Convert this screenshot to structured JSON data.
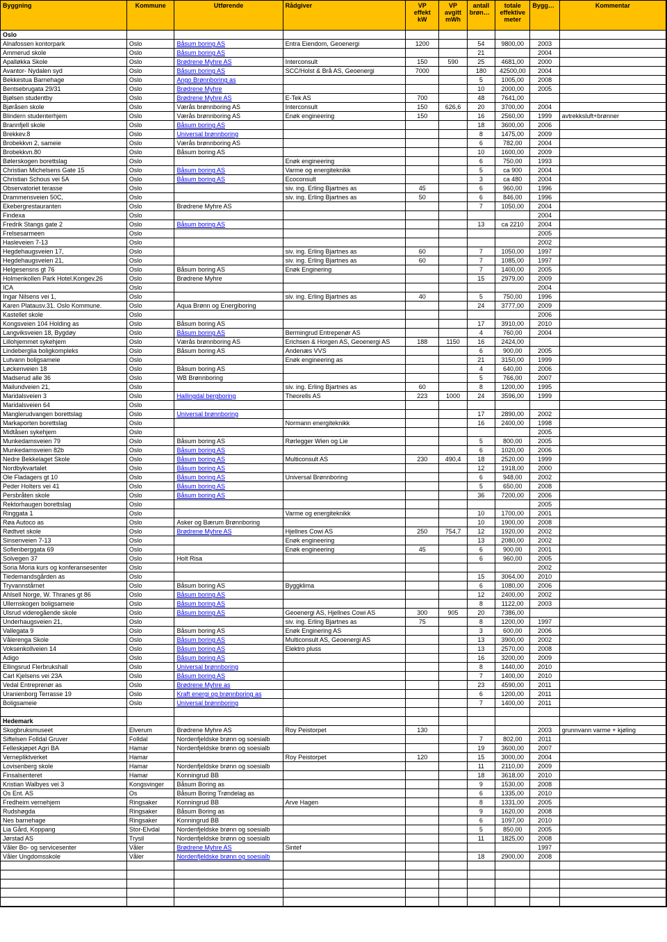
{
  "columns": [
    {
      "label": "Byggning"
    },
    {
      "label": "Kommune"
    },
    {
      "label": "Utførende"
    },
    {
      "label": "Rådgiver"
    },
    {
      "label": "VP effekt kW"
    },
    {
      "label": "VP avgitt mWh"
    },
    {
      "label": "antall brønner"
    },
    {
      "label": "totale effektive meter"
    },
    {
      "label": "Byggeår"
    },
    {
      "label": "Kommentar"
    }
  ],
  "table_style": {
    "header_bg": "#ffc000",
    "border_color": "#000000",
    "link_color": "#0000ee",
    "font_size_pt": 7,
    "font_family": "Arial"
  },
  "rows": [
    {
      "section": "Oslo"
    },
    {
      "b": "Alnafossen kontorpark",
      "k": "Oslo",
      "u": "Båsum boring AS",
      "ul": true,
      "r": "Entra Eiendom, Geoenergi",
      "vp": "1200",
      "vw": "",
      "ab": "54",
      "tm": "9800,00",
      "y": "2003"
    },
    {
      "b": "Ammerud skole",
      "k": "Oslo",
      "u": "Båsum boring AS",
      "ul": true,
      "ab": "21",
      "y": "2004"
    },
    {
      "b": "Apalløkka Skole",
      "k": "Oslo",
      "u": "Brødrene Myhre AS",
      "ul": true,
      "r": "Interconsult",
      "vp": "150",
      "vw": "590",
      "ab": "25",
      "tm": "4681,00",
      "y": "2000"
    },
    {
      "b": "Avantor- Nydalen syd",
      "k": "Oslo",
      "u": "Båsum boring AS",
      "ul": true,
      "r": "SCC/Holst & Brå AS, Geoenergi",
      "vp": "7000",
      "ab": "180",
      "tm": "42500,00",
      "y": "2004"
    },
    {
      "b": "Bekkestua Barnehage",
      "k": "Oslo",
      "u": "Ango Brønnboring as",
      "ul": true,
      "ab": "5",
      "tm": "1005,00",
      "y": "2008"
    },
    {
      "b": "Bentsebrugata 29/31",
      "k": "Oslo",
      "u": "Brødrene Myhre",
      "ul": true,
      "ab": "10",
      "tm": "2000,00",
      "y": "2005"
    },
    {
      "b": "Bjølsen studentby",
      "k": "Oslo",
      "u": "Brødrene Myhre AS",
      "ul": true,
      "r": "E-Tek AS",
      "vp": "700",
      "ab": "48",
      "tm": "7641,00"
    },
    {
      "b": "Bjøråsen  skole",
      "k": "Oslo",
      "u": "Værås brønnboring AS",
      "r": "Interconsult",
      "vp": "150",
      "vw": "626,6",
      "ab": "20",
      "tm": "3700,00",
      "y": "2004"
    },
    {
      "b": "Blindern studenterhjem",
      "k": "Oslo",
      "u": "Værås brønnboring AS",
      "r": "Enøk engineering",
      "vp": "150",
      "ab": "16",
      "tm": "2560,00",
      "y": "1999",
      "c": "avtrekksluft+brønner"
    },
    {
      "b": "Brannfjell skole",
      "k": "Oslo",
      "u": "Båsum boring AS",
      "ul": true,
      "ab": "18",
      "tm": "3600,00",
      "y": "2006"
    },
    {
      "b": "Brekkev.8",
      "k": "Oslo",
      "u": "Universal brønnboring",
      "ul": true,
      "ab": "8",
      "tm": "1475,00",
      "y": "2009"
    },
    {
      "b": "Brobekkvn 2, sameie",
      "k": "Oslo",
      "u": "Værås brønnboring AS",
      "ab": "6",
      "tm": "782,00",
      "y": "2004"
    },
    {
      "b": "Brobekkvn.80",
      "k": "Oslo",
      "u": "Båsum boring AS",
      "ab": "10",
      "tm": "1600,00",
      "y": "2009"
    },
    {
      "b": "Bølerskogen borettslag",
      "k": "Oslo",
      "r": "Enøk engineering",
      "ab": "6",
      "tm": "750,00",
      "y": "1993"
    },
    {
      "b": "Christian Michelsens Gate 15",
      "k": "Oslo",
      "u": "Båsum boring AS",
      "ul": true,
      "r": "Varme og energiteknikk",
      "ab": "5",
      "tm": "ca 900",
      "y": "2004"
    },
    {
      "b": "Christian Schous vei 5A",
      "k": "Oslo",
      "u": "Båsum boring AS",
      "ul": true,
      "r": "Ecoconsult",
      "ab": "3",
      "tm": "ca 480",
      "y": "2004"
    },
    {
      "b": "Observatoriet terasse",
      "k": "Oslo",
      "r": "siv. ing. Erling Bjartnes as",
      "vp": "45",
      "ab": "6",
      "tm": "960,00",
      "y": "1996"
    },
    {
      "b": "Drammensveien 50C,",
      "k": "Oslo",
      "r": "siv. ing. Erling Bjartnes as",
      "vp": "50",
      "ab": "6",
      "tm": "846,00",
      "y": "1996"
    },
    {
      "b": "Ekebergrestauranten",
      "k": "Oslo",
      "u": "Brødrene Myhre AS",
      "ab": "7",
      "tm": "1050,00",
      "y": "2004"
    },
    {
      "b": "Findexa",
      "k": "Oslo",
      "y": "2004"
    },
    {
      "b": "Fredrik Stangs gate 2",
      "k": "Oslo",
      "u": "Båsum boring AS",
      "ul": true,
      "ab": "13",
      "tm": "ca 2210",
      "y": "2004"
    },
    {
      "b": "Frelsesarmeen",
      "k": "Oslo",
      "y": "2005"
    },
    {
      "b": "Hasleveien 7-13",
      "k": "Oslo",
      "y": "2002"
    },
    {
      "b": "Hegdehaugsveien 17,",
      "k": "Oslo",
      "r": "siv. ing. Erling Bjartnes as",
      "vp": "60",
      "ab": "7",
      "tm": "1050,00",
      "y": "1997"
    },
    {
      "b": "Hegdehaugsveien 21,",
      "k": "Oslo",
      "r": "siv. ing. Erling Bjartnes as",
      "vp": "60",
      "ab": "7",
      "tm": "1085,00",
      "y": "1997"
    },
    {
      "b": "Helgesensns gt 76",
      "k": "Oslo",
      "u": "Båsum boring AS",
      "r": "Enøk Enginering",
      "ab": "7",
      "tm": "1400,00",
      "y": "2005"
    },
    {
      "b": "Holmenkollen Park Hotel.Kongev.26",
      "k": "Oslo",
      "u": "Brødrene Myhre",
      "ab": "15",
      "tm": "2979,00",
      "y": "2009"
    },
    {
      "b": "ICA",
      "k": "Oslo",
      "y": "2004"
    },
    {
      "b": "Ingar Nilsens vei 1,",
      "k": "Oslo",
      "r": "siv. ing. Erling Bjartnes as",
      "vp": "40",
      "ab": "5",
      "tm": "750,00",
      "y": "1996"
    },
    {
      "b": "Karen Platausv.31. Oslo Kommune.",
      "k": "Oslo",
      "u": "Aqua Brønn og Energiboring",
      "ab": "24",
      "tm": "3777,00",
      "y": "2009"
    },
    {
      "b": "Kastellet skole",
      "k": "Oslo",
      "y": "2006"
    },
    {
      "b": "Kongsveien 104 Holding as",
      "k": "Oslo",
      "u": "Båsum boring AS",
      "ab": "17",
      "tm": "3910,00",
      "y": "2010"
    },
    {
      "b": "Langviksveien 18, Bygdøy",
      "k": "Oslo",
      "u": "Båsum boring AS",
      "ul": true,
      "r": "Bermingrud Entrepenør AS",
      "ab": "4",
      "tm": "760,00",
      "y": "2004"
    },
    {
      "b": "Lillohjemmet sykehjem",
      "k": "Oslo",
      "u": "Værås brønnboring AS",
      "r": "Erichsen & Horgen AS, Geoenergi AS",
      "vp": "188",
      "vw": "1150",
      "ab": "16",
      "tm": "2424,00"
    },
    {
      "b": "Lindeberglia boligkompleks",
      "k": "Oslo",
      "u": "Båsum boring AS",
      "r": "Andenæs VVS",
      "ab": "6",
      "tm": "900,00",
      "y": "2005"
    },
    {
      "b": "Lutvann boligsameie",
      "k": "Oslo",
      "r": "Enøk engineering as",
      "ab": "21",
      "tm": "3150,00",
      "y": "1999"
    },
    {
      "b": "Løckenveien 18",
      "k": "Oslo",
      "u": "Båsum boring AS",
      "ab": "4",
      "tm": "640,00",
      "y": "2006"
    },
    {
      "b": "Madserud alle 36",
      "k": "Oslo",
      "u": "WB Brønnboring",
      "ab": "5",
      "tm": "766,00",
      "y": "2007"
    },
    {
      "b": "Mailundveien 21,",
      "k": "Oslo",
      "r": "siv. ing. Erling Bjartnes as",
      "vp": "60",
      "ab": "8",
      "tm": "1200,00",
      "y": "1995"
    },
    {
      "b": "Maridalsveien 3",
      "k": "Oslo",
      "u": "Hallingdal bergboring",
      "ul": true,
      "r": "Theorells AS",
      "vp": "223",
      "vw": "1000",
      "ab": "24",
      "tm": "3596,00",
      "y": "1999"
    },
    {
      "b": "Maridalsveien 64",
      "k": "Oslo"
    },
    {
      "b": "Manglerudvangen borettslag",
      "k": "Oslo",
      "u": "Universal brønnboring",
      "ul": true,
      "ab": "17",
      "tm": "2890,00",
      "y": "2002"
    },
    {
      "b": "Markaporten borettslag",
      "k": "Oslo",
      "r": "Normann energiteknikk",
      "ab": "16",
      "tm": "2400,00",
      "y": "1998"
    },
    {
      "b": "Midtåsen sykehjem",
      "k": "Oslo",
      "y": "2005"
    },
    {
      "b": "Munkedamsveien 79",
      "k": "Oslo",
      "u": "Båsum boring AS",
      "r": "Rørlegger Wien og Lie",
      "ab": "5",
      "tm": "800,00",
      "y": "2005"
    },
    {
      "b": "Munkedamsveien 82b",
      "k": "Oslo",
      "u": "Båsum boring AS",
      "ul": true,
      "ab": "6",
      "tm": "1020,00",
      "y": "2006"
    },
    {
      "b": "Nedre Bekkelaget Skole",
      "k": "Oslo",
      "u": "Båsum boring AS",
      "ul": true,
      "r": "Multiconsult AS",
      "vp": "230",
      "vw": "490,4",
      "ab": "18",
      "tm": "2520,00",
      "y": "1999"
    },
    {
      "b": "Nordbykvartalet",
      "k": "Oslo",
      "u": "Båsum boring AS",
      "ul": true,
      "ab": "12",
      "tm": "1918,00",
      "y": "2000"
    },
    {
      "b": "Ole Fladagers gt 10",
      "k": "Oslo",
      "u": "Båsum boring AS",
      "ul": true,
      "r": "Universal Brønnboring",
      "ab": "6",
      "tm": "948,00",
      "y": "2002"
    },
    {
      "b": "Peder Holters vei 41",
      "k": "Oslo",
      "u": "Båsum boring AS",
      "ul": true,
      "ab": "5",
      "tm": "650,00",
      "y": "2008"
    },
    {
      "b": "Persbråten skole",
      "k": "Oslo",
      "u": "Båsum boring AS",
      "ul": true,
      "ab": "36",
      "tm": "7200,00",
      "y": "2006"
    },
    {
      "b": "Rektorhaugen borettslag",
      "k": "Oslo",
      "y": "2005"
    },
    {
      "b": "Ringgata 1",
      "k": "Oslo",
      "r": "Varme og energiteknikk",
      "ab": "10",
      "tm": "1700,00",
      "y": "2001"
    },
    {
      "b": "Røa Autoco as",
      "k": "Oslo",
      "u": "Asker og Bærum Brønnboring",
      "ab": "10",
      "tm": "1900,00",
      "y": "2008"
    },
    {
      "b": "Rødtvet skole",
      "k": "Oslo",
      "u": "Brødrene Myhre AS",
      "ul": true,
      "r": "Hjellnes Cowi AS",
      "vp": "250",
      "vw": "754,7",
      "ab": "12",
      "tm": "1920,00",
      "y": "2002"
    },
    {
      "b": "Sinsenveien 7-13",
      "k": "Oslo",
      "r": "Enøk engineering",
      "ab": "13",
      "tm": "2080,00",
      "y": "2002"
    },
    {
      "b": "Sofienberggata 69",
      "k": "Oslo",
      "r": "Enøk engineering",
      "vp": "45",
      "ab": "6",
      "tm": "900,00",
      "y": "2001"
    },
    {
      "b": "Solvegen 37",
      "k": "Oslo",
      "u": "Holt Risa",
      "ab": "6",
      "tm": "960,00",
      "y": "2005"
    },
    {
      "b": "Soria Moria kurs og konferansesenter",
      "k": "Oslo",
      "y": "2002"
    },
    {
      "b": "Tiedemandsgården as",
      "k": "Oslo",
      "ab": "15",
      "tm": "3064,00",
      "y": "2010"
    },
    {
      "b": "Tryvannstårnet",
      "k": "Oslo",
      "u": "Båsum boring AS",
      "r": "Byggklima",
      "ab": "6",
      "tm": "1080,00",
      "y": "2006"
    },
    {
      "b": "Ahlsell Norge, W. Thranes gt 86",
      "k": "Oslo",
      "u": "Båsum boring AS",
      "ul": true,
      "ab": "12",
      "tm": "2400,00",
      "y": "2002"
    },
    {
      "b": "Ullernskogen boligsameie",
      "k": "Oslo",
      "u": "Båsum boring AS",
      "ul": true,
      "ab": "8",
      "tm": "1122,00",
      "y": "2003"
    },
    {
      "b": "Ulsrud videregående skole",
      "k": "Oslo",
      "u": "Båsum boring AS",
      "ul": true,
      "r": "Geoenergi AS,  Hjellnes Cowi AS",
      "vp": "300",
      "vw": "905",
      "ab": "20",
      "tm": "7386,00"
    },
    {
      "b": "Underhaugsveien 21,",
      "k": "Oslo",
      "r": "siv. ing. Erling Bjartnes as",
      "vp": "75",
      "ab": "8",
      "tm": "1200,00",
      "y": "1997"
    },
    {
      "b": "Vallegata 9",
      "k": "Oslo",
      "u": "Båsum boring AS",
      "r": "Enøk Enginering AS",
      "ab": "3",
      "tm": "600,00",
      "y": "2006"
    },
    {
      "b": "Vålerenga Skole",
      "k": "Oslo",
      "u": "Båsum boring AS",
      "ul": true,
      "r": "Multiconsult AS, Geoenergi AS",
      "ab": "13",
      "tm": "3900,00",
      "y": "2002"
    },
    {
      "b": "Voksenkollveien 14",
      "k": "Oslo",
      "u": "Båsum boring AS",
      "ul": true,
      "r": "Elektro pluss",
      "ab": "13",
      "tm": "2570,00",
      "y": "2008"
    },
    {
      "b": "Adigo",
      "k": "Oslo",
      "u": "Båsum boring AS",
      "ul": true,
      "ab": "16",
      "tm": "3200,00",
      "y": "2009"
    },
    {
      "b": "Ellingsrud Flerbrukshall",
      "k": "Oslo",
      "u": "Universal brønnboring",
      "ul": true,
      "ab": "8",
      "tm": "1440,00",
      "y": "2010"
    },
    {
      "b": "Carl Kjelsens vei 23A",
      "k": "Oslo",
      "u": "Båsum boring AS",
      "ul": true,
      "ab": "7",
      "tm": "1400,00",
      "y": "2010"
    },
    {
      "b": "Vedal Entreprenør as",
      "k": "Oslo",
      "u": "Brødrene Myhre as",
      "ul": true,
      "ab": "23",
      "tm": "4590,00",
      "y": "2011"
    },
    {
      "b": "Uranienborg Terrasse 19",
      "k": "Oslo",
      "u": "Kraft energi og brønnboring as",
      "ul": true,
      "ab": "6",
      "tm": "1200,00",
      "y": "2011"
    },
    {
      "b": "Boligsameie",
      "k": "Oslo",
      "u": "Universal brønnboring",
      "ul": true,
      "ab": "7",
      "tm": "1400,00",
      "y": "2011"
    },
    {
      "blank": true
    },
    {
      "section": "Hedemark"
    },
    {
      "b": "Skogbruksmuseet",
      "k": "Elverum",
      "u": "Brødrene Myhre AS",
      "r": "Roy Peistorpet",
      "vp": "130",
      "y": "2003",
      "c": "grunnvann varme + kjøling"
    },
    {
      "b": "Siftelsen Folldal Gruver",
      "k": "Folldal",
      "u": "Nordenfjeldske brønn og soesialb",
      "ab": "7",
      "tm": "802,00",
      "y": "2011"
    },
    {
      "b": "Felleskjøpet Agri BA",
      "k": "Hamar",
      "u": "Nordenfjeldske brønn og soesialb",
      "ab": "19",
      "tm": "3600,00",
      "y": "2007"
    },
    {
      "b": "Vernepliktverket",
      "k": "Hamar",
      "r": "Roy Peistorpet",
      "vp": "120",
      "ab": "15",
      "tm": "3000,00",
      "y": "2004"
    },
    {
      "b": "Lovisenberg skole",
      "k": "Hamar",
      "u": "Nordenfjeldske brønn og soesialb",
      "ab": "11",
      "tm": "2110,00",
      "y": "2009"
    },
    {
      "b": "Finsalsenteret",
      "k": "Hamar",
      "u": "Konningrud BB",
      "ab": "18",
      "tm": "3618,00",
      "y": "2010"
    },
    {
      "b": "Kristian Walbyes vei 3",
      "k": "Kongsvinger",
      "u": "Båsum Boring as",
      "ab": "9",
      "tm": "1530,00",
      "y": "2008"
    },
    {
      "b": "Os Ent. AS",
      "k": "Os",
      "u": "Båsum Boring Trøndelag as",
      "ab": "6",
      "tm": "1335,00",
      "y": "2010"
    },
    {
      "b": "Fredheim vernehjem",
      "k": "Ringsaker",
      "u": "Konningrud BB",
      "r": "Arve Hagen",
      "ab": "8",
      "tm": "1331,00",
      "y": "2005"
    },
    {
      "b": "Rudshøgda",
      "k": "Ringsaker",
      "u": "Båsum Boring as",
      "ab": "9",
      "tm": "1620,00",
      "y": "2008"
    },
    {
      "b": "Nes barnehage",
      "k": "Ringsaker",
      "u": "Konningrud BB",
      "ab": "6",
      "tm": "1097,00",
      "y": "2010"
    },
    {
      "b": "Lia Gård, Koppang",
      "k": "Stor-Elvdal",
      "u": "Nordenfjeldske brønn og soesialb",
      "ab": "5",
      "tm": "850,00",
      "y": "2005"
    },
    {
      "b": "Jørstad AS",
      "k": "Trysil",
      "u": "Nordenfjeldske brønn og soesialb",
      "ab": "11",
      "tm": "1825,00",
      "y": "2008"
    },
    {
      "b": "Våler Bo- og servicesenter",
      "k": "Våler",
      "u": "Brødrene Myhre AS",
      "ul": true,
      "r": "Sintef",
      "y": "1997"
    },
    {
      "b": "Våler Ungdomsskole",
      "k": "Våler",
      "u": "Nordenfjeldske brønn og soesialb",
      "ul": true,
      "ab": "18",
      "tm": "2900,00",
      "y": "2008"
    },
    {
      "blank": true
    },
    {
      "blank": true
    },
    {
      "blank": true
    },
    {
      "blank": true
    },
    {
      "blank": true
    }
  ]
}
